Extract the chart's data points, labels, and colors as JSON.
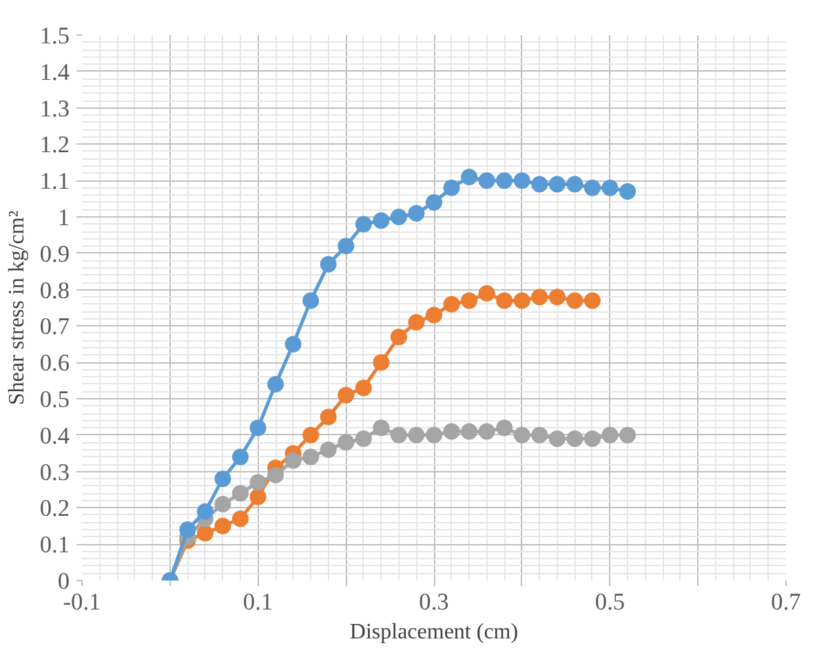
{
  "chart_data": {
    "type": "line",
    "xlabel": "Displacement (cm)",
    "ylabel": "Shear stress in kg/cm²",
    "marker": "circle",
    "grid": true,
    "xlim": [
      -0.1,
      0.7
    ],
    "ylim": [
      0,
      1.5
    ],
    "xticks": [
      -0.1,
      {
        "value": 0,
        "label": null
      },
      0.1,
      {
        "value": 0.2,
        "label": null
      },
      0.3,
      {
        "value": 0.4,
        "label": null
      },
      0.5,
      {
        "value": 0.6,
        "label": null
      },
      0.7
    ],
    "yticks": [
      0,
      0.1,
      0.2,
      0.3,
      0.4,
      0.5,
      0.6,
      0.7,
      0.8,
      0.9,
      1,
      1.1,
      1.2,
      1.3,
      1.4,
      1.5
    ],
    "series": [
      {
        "color": "#ed7d31",
        "x": [
          0,
          0.02,
          0.04,
          0.06,
          0.08,
          0.1,
          0.12,
          0.14,
          0.16,
          0.18,
          0.2,
          0.22,
          0.24,
          0.26,
          0.28,
          0.3,
          0.32,
          0.34,
          0.36,
          0.38,
          0.4,
          0.42,
          0.44,
          0.46,
          0.48
        ],
        "values": [
          0,
          0.11,
          0.13,
          0.15,
          0.17,
          0.23,
          0.31,
          0.35,
          0.4,
          0.45,
          0.51,
          0.53,
          0.6,
          0.67,
          0.71,
          0.73,
          0.76,
          0.77,
          0.79,
          0.77,
          0.77,
          0.78,
          0.78,
          0.77,
          0.77
        ]
      },
      {
        "color": "#a5a5a5",
        "x": [
          0,
          0.02,
          0.04,
          0.06,
          0.08,
          0.1,
          0.12,
          0.14,
          0.16,
          0.18,
          0.2,
          0.22,
          0.24,
          0.26,
          0.28,
          0.3,
          0.32,
          0.34,
          0.36,
          0.38,
          0.4,
          0.42,
          0.44,
          0.46,
          0.48,
          0.5,
          0.52
        ],
        "values": [
          0,
          0.12,
          0.17,
          0.21,
          0.24,
          0.27,
          0.29,
          0.33,
          0.34,
          0.36,
          0.38,
          0.39,
          0.42,
          0.4,
          0.4,
          0.4,
          0.41,
          0.41,
          0.41,
          0.42,
          0.4,
          0.4,
          0.39,
          0.39,
          0.39,
          0.4,
          0.4
        ]
      },
      {
        "color": "#5b9bd5",
        "x": [
          0,
          0.02,
          0.04,
          0.06,
          0.08,
          0.1,
          0.12,
          0.14,
          0.16,
          0.18,
          0.2,
          0.22,
          0.24,
          0.26,
          0.28,
          0.3,
          0.32,
          0.34,
          0.36,
          0.38,
          0.4,
          0.42,
          0.44,
          0.46,
          0.48,
          0.5,
          0.52
        ],
        "values": [
          0,
          0.14,
          0.19,
          0.28,
          0.34,
          0.42,
          0.54,
          0.65,
          0.77,
          0.87,
          0.92,
          0.98,
          0.99,
          1.0,
          1.01,
          1.04,
          1.08,
          1.11,
          1.1,
          1.1,
          1.1,
          1.09,
          1.09,
          1.09,
          1.08,
          1.08,
          1.07
        ]
      }
    ]
  }
}
